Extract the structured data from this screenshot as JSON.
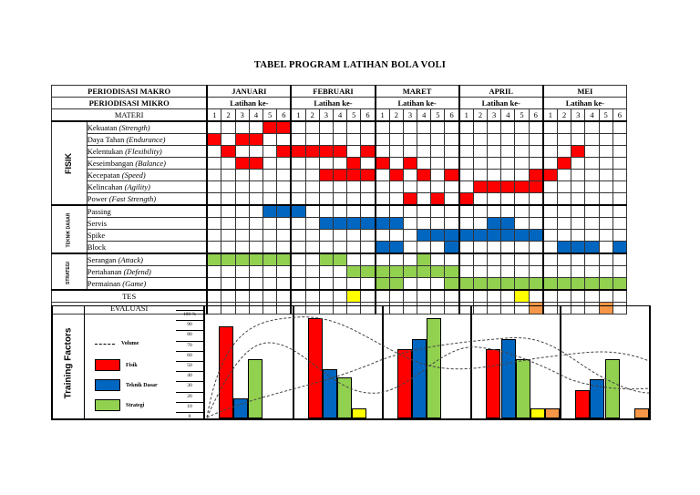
{
  "title": "TABEL PROGRAM LATIHAN BOLA VOLI",
  "header": {
    "makro_label": "PERIODISASI MAKRO",
    "mikro_label": "PERIODISASI MIKRO",
    "materi_label": "MATERI",
    "latihan_label": "Latihan ke-",
    "months": [
      "JANUARI",
      "FEBRUARI",
      "MARET",
      "APRIL",
      "MEI"
    ],
    "sessions": [
      "1",
      "2",
      "3",
      "4",
      "5",
      "6"
    ]
  },
  "colors": {
    "fisik": "#ff0000",
    "teknik": "#0066c0",
    "strategi": "#92d050",
    "tes": "#ffff00",
    "evaluasi": "#f79646"
  },
  "categories": [
    {
      "name": "FISIK",
      "color_key": "fisik",
      "rows": [
        {
          "label": "Kekuatan ",
          "en": "(Strength)",
          "cells": [
            4,
            5
          ]
        },
        {
          "label": "Daya Tahan ",
          "en": "(Endurance)",
          "cells": [
            0,
            2,
            3
          ]
        },
        {
          "label": "Kelentukan ",
          "en": "(Flexibility)",
          "cells": [
            1,
            5,
            6,
            7,
            8,
            9,
            11,
            26
          ]
        },
        {
          "label": "Keseimbangan ",
          "en": "(Balance)",
          "cells": [
            2,
            3,
            10,
            12,
            14,
            25
          ]
        },
        {
          "label": "Kecepatan ",
          "en": "(Speed)",
          "cells": [
            8,
            9,
            10,
            11,
            13,
            15,
            17,
            23,
            24
          ]
        },
        {
          "label": "Kelincahan ",
          "en": "(Agility)",
          "cells": [
            19,
            20,
            21,
            22,
            23
          ]
        },
        {
          "label": "Power ",
          "en": "(Fast Strength)",
          "cells": [
            14,
            16,
            18
          ]
        }
      ]
    },
    {
      "name": "TEKNIK DASAR",
      "color_key": "teknik",
      "rows": [
        {
          "label": "Passing",
          "en": "",
          "cells": [
            4,
            5,
            6
          ]
        },
        {
          "label": "Servis",
          "en": "",
          "cells": [
            8,
            9,
            10,
            11,
            12,
            13,
            20,
            21
          ]
        },
        {
          "label": "Spike",
          "en": "",
          "cells": [
            15,
            16,
            17,
            18,
            19,
            20,
            21,
            22,
            23
          ]
        },
        {
          "label": "Block",
          "en": "",
          "cells": [
            12,
            13,
            17,
            25,
            26,
            27,
            29
          ]
        }
      ]
    },
    {
      "name": "STRATEGI",
      "color_key": "strategi",
      "rows": [
        {
          "label": "Serangan ",
          "en": "(Attack)",
          "cells": [
            0,
            1,
            2,
            3,
            4,
            5,
            8,
            9,
            15
          ]
        },
        {
          "label": "Pertahanan ",
          "en": "(Defend)",
          "cells": [
            10,
            11,
            12,
            13,
            14,
            15,
            16,
            17
          ]
        },
        {
          "label": "Permainan ",
          "en": "(Game)",
          "cells": [
            12,
            13,
            17,
            18,
            19,
            20,
            21,
            22,
            23,
            24,
            25,
            26,
            27,
            28,
            29
          ]
        }
      ]
    }
  ],
  "tes": {
    "label": "TES",
    "color_key": "tes",
    "cells": [
      10,
      22
    ]
  },
  "evaluasi": {
    "label": "EVALUASI",
    "color_key": "evaluasi",
    "cells": [
      23,
      28
    ]
  },
  "chart_data": {
    "type": "bar",
    "title": "Training Factors",
    "ylabel": "%",
    "ylim": [
      0,
      100
    ],
    "yticks": [
      "100 %",
      "90",
      "80",
      "70",
      "60",
      "50",
      "40",
      "30",
      "20",
      "10",
      "0"
    ],
    "categories": [
      "JANUARI",
      "FEBRUARI",
      "MARET",
      "APRIL",
      "MEI"
    ],
    "series": [
      {
        "name": "Fisik",
        "color": "#ff0000",
        "values": [
          90,
          98,
          68,
          68,
          28
        ]
      },
      {
        "name": "Teknik Dasar",
        "color": "#0066c0",
        "values": [
          20,
          48,
          78,
          78,
          38
        ]
      },
      {
        "name": "Strategi",
        "color": "#92d050",
        "values": [
          58,
          40,
          98,
          58,
          58
        ]
      },
      {
        "name": "Tes",
        "color": "#ffff00",
        "values": [
          0,
          10,
          0,
          10,
          0
        ]
      },
      {
        "name": "Evaluasi",
        "color": "#f79646",
        "values": [
          0,
          0,
          0,
          10,
          10
        ]
      }
    ],
    "legend": [
      "Volume",
      "Fisik",
      "Teknik Dasar",
      "Strategi"
    ],
    "volume_line": "dashed"
  }
}
